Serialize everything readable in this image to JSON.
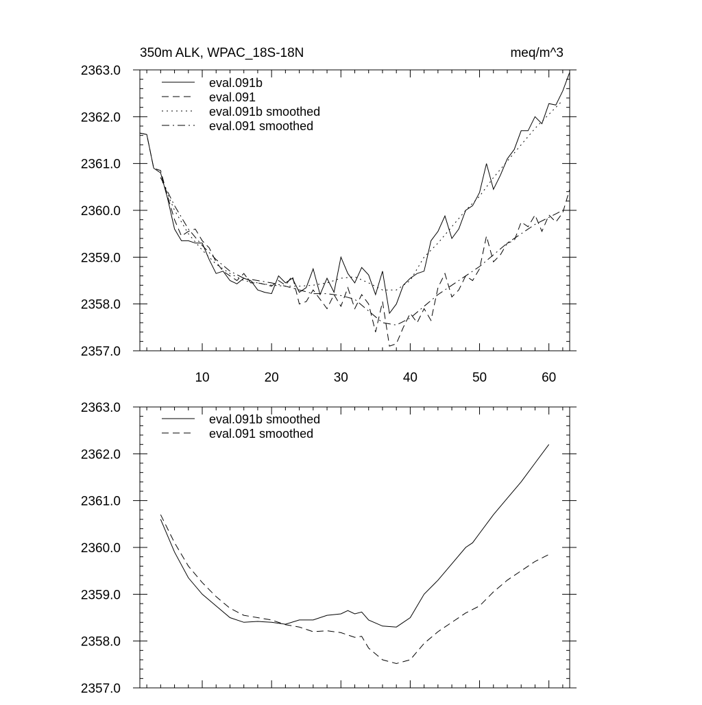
{
  "chart_data": [
    {
      "type": "line",
      "title": "350m ALK, WPAC_18S-18N",
      "units": "meq/m^3",
      "xlim": [
        1,
        63
      ],
      "ylim": [
        2357.0,
        2363.0
      ],
      "xticks": [
        10,
        20,
        30,
        40,
        50,
        60
      ],
      "xtick_labels": [
        "10",
        "20",
        "30",
        "40",
        "50",
        "60"
      ],
      "yticks": [
        2357.0,
        2358.0,
        2359.0,
        2360.0,
        2361.0,
        2362.0,
        2363.0
      ],
      "ytick_labels": [
        "2357.0",
        "2358.0",
        "2359.0",
        "2360.0",
        "2361.0",
        "2362.0",
        "2363.0"
      ],
      "legend_position": "top-left",
      "series": [
        {
          "name": "eval.091b",
          "style": "solid",
          "x": [
            1,
            2,
            3,
            4,
            5,
            6,
            7,
            8,
            9,
            10,
            11,
            12,
            13,
            14,
            15,
            16,
            17,
            18,
            19,
            20,
            21,
            22,
            23,
            24,
            25,
            26,
            27,
            28,
            29,
            30,
            31,
            32,
            33,
            34,
            35,
            36,
            37,
            38,
            39,
            40,
            41,
            42,
            43,
            44,
            45,
            46,
            47,
            48,
            49,
            50,
            51,
            52,
            53,
            54,
            55,
            56,
            57,
            58,
            59,
            60,
            61,
            62,
            63
          ],
          "values": [
            2361.65,
            2361.62,
            2360.9,
            2360.8,
            2360.25,
            2359.6,
            2359.35,
            2359.35,
            2359.3,
            2359.3,
            2358.95,
            2358.65,
            2358.7,
            2358.5,
            2358.43,
            2358.55,
            2358.5,
            2358.3,
            2358.25,
            2358.22,
            2358.6,
            2358.45,
            2358.55,
            2358.25,
            2358.35,
            2358.75,
            2358.2,
            2358.55,
            2358.25,
            2359.0,
            2358.65,
            2358.45,
            2358.78,
            2358.62,
            2358.2,
            2358.7,
            2357.8,
            2358.0,
            2358.4,
            2358.55,
            2358.65,
            2358.7,
            2359.35,
            2359.55,
            2359.88,
            2359.4,
            2359.6,
            2360.0,
            2360.1,
            2360.38,
            2361.0,
            2360.45,
            2360.75,
            2361.1,
            2361.3,
            2361.7,
            2361.7,
            2362.0,
            2361.85,
            2362.28,
            2362.25,
            2362.55,
            2362.95
          ]
        },
        {
          "name": "eval.091",
          "style": "dashed",
          "x": [
            1,
            2,
            3,
            4,
            5,
            6,
            7,
            8,
            9,
            10,
            11,
            12,
            13,
            14,
            15,
            16,
            17,
            18,
            19,
            20,
            21,
            22,
            23,
            24,
            25,
            26,
            27,
            28,
            29,
            30,
            31,
            32,
            33,
            34,
            35,
            36,
            37,
            38,
            39,
            40,
            41,
            42,
            43,
            44,
            45,
            46,
            47,
            48,
            49,
            50,
            51,
            52,
            53,
            54,
            55,
            56,
            57,
            58,
            59,
            60,
            61,
            62,
            63
          ],
          "values": [
            2361.65,
            2361.62,
            2360.9,
            2360.85,
            2360.3,
            2359.8,
            2359.45,
            2359.55,
            2359.6,
            2359.35,
            2359.2,
            2358.9,
            2358.7,
            2358.6,
            2358.5,
            2358.65,
            2358.45,
            2358.45,
            2358.42,
            2358.38,
            2358.5,
            2358.4,
            2358.6,
            2358.0,
            2358.05,
            2358.3,
            2358.1,
            2357.9,
            2358.2,
            2357.95,
            2358.35,
            2357.9,
            2358.2,
            2358.0,
            2357.4,
            2358.05,
            2357.1,
            2357.15,
            2357.5,
            2357.8,
            2357.6,
            2357.9,
            2357.65,
            2358.35,
            2358.65,
            2358.15,
            2358.3,
            2358.6,
            2358.5,
            2358.75,
            2359.45,
            2358.9,
            2359.05,
            2359.3,
            2359.35,
            2359.75,
            2359.65,
            2359.9,
            2359.55,
            2359.9,
            2359.75,
            2359.95,
            2360.45
          ]
        },
        {
          "name": "eval.091b smoothed",
          "style": "dotted",
          "x": [
            4,
            6,
            8,
            10,
            12,
            14,
            16,
            18,
            20,
            22,
            24,
            26,
            28,
            30,
            32,
            34,
            36,
            38,
            40,
            42,
            44,
            46,
            48,
            50,
            52,
            54,
            56,
            58,
            60,
            62
          ],
          "values": [
            2360.7,
            2360.0,
            2359.5,
            2359.15,
            2358.85,
            2358.65,
            2358.5,
            2358.45,
            2358.4,
            2358.38,
            2358.38,
            2358.4,
            2358.45,
            2358.55,
            2358.58,
            2358.45,
            2358.3,
            2358.3,
            2358.5,
            2359.0,
            2359.3,
            2359.65,
            2360.0,
            2360.3,
            2360.7,
            2361.05,
            2361.4,
            2361.75,
            2362.05,
            2362.35
          ]
        },
        {
          "name": "eval.091 smoothed",
          "style": "dashdot",
          "x": [
            4,
            6,
            8,
            10,
            12,
            14,
            16,
            18,
            20,
            22,
            24,
            26,
            28,
            30,
            32,
            34,
            36,
            38,
            40,
            42,
            44,
            46,
            48,
            50,
            52,
            54,
            56,
            58,
            60,
            62
          ],
          "values": [
            2360.7,
            2360.1,
            2359.6,
            2359.25,
            2358.95,
            2358.7,
            2358.55,
            2358.5,
            2358.45,
            2358.38,
            2358.3,
            2358.22,
            2358.22,
            2358.18,
            2358.1,
            2357.85,
            2357.6,
            2357.55,
            2357.7,
            2357.95,
            2358.2,
            2358.4,
            2358.6,
            2358.8,
            2359.05,
            2359.3,
            2359.5,
            2359.7,
            2359.85,
            2360.0
          ]
        }
      ]
    },
    {
      "type": "line",
      "xlim": [
        1,
        63
      ],
      "ylim": [
        2357.0,
        2363.0
      ],
      "xticks": [
        10,
        20,
        30,
        40,
        50,
        60
      ],
      "yticks": [
        2357.0,
        2358.0,
        2359.0,
        2360.0,
        2361.0,
        2362.0,
        2363.0
      ],
      "ytick_labels": [
        "2357.0",
        "2358.0",
        "2359.0",
        "2360.0",
        "2361.0",
        "2362.0",
        "2363.0"
      ],
      "legend_position": "top-left",
      "series": [
        {
          "name": "eval.091b smoothed",
          "style": "solid",
          "x": [
            4,
            6,
            8,
            10,
            12,
            14,
            16,
            18,
            20,
            22,
            24,
            26,
            28,
            30,
            31,
            32,
            33,
            34,
            36,
            38,
            40,
            42,
            44,
            46,
            48,
            49,
            50,
            52,
            54,
            56,
            58,
            60
          ],
          "values": [
            2360.6,
            2359.9,
            2359.35,
            2359.0,
            2358.75,
            2358.5,
            2358.4,
            2358.42,
            2358.4,
            2358.36,
            2358.45,
            2358.45,
            2358.55,
            2358.58,
            2358.65,
            2358.58,
            2358.62,
            2358.45,
            2358.32,
            2358.3,
            2358.5,
            2359.0,
            2359.3,
            2359.65,
            2360.0,
            2360.1,
            2360.3,
            2360.7,
            2361.05,
            2361.4,
            2361.8,
            2362.2
          ]
        },
        {
          "name": "eval.091 smoothed",
          "style": "dashed",
          "x": [
            4,
            6,
            8,
            10,
            12,
            14,
            16,
            18,
            20,
            22,
            24,
            26,
            28,
            30,
            32,
            33,
            34,
            36,
            38,
            40,
            42,
            44,
            46,
            48,
            50,
            52,
            54,
            56,
            58,
            60
          ],
          "values": [
            2360.7,
            2360.1,
            2359.6,
            2359.25,
            2358.95,
            2358.7,
            2358.55,
            2358.5,
            2358.45,
            2358.35,
            2358.3,
            2358.2,
            2358.22,
            2358.18,
            2358.08,
            2358.1,
            2357.85,
            2357.6,
            2357.52,
            2357.6,
            2357.95,
            2358.2,
            2358.4,
            2358.6,
            2358.75,
            2359.05,
            2359.3,
            2359.5,
            2359.7,
            2359.85
          ]
        }
      ]
    }
  ]
}
